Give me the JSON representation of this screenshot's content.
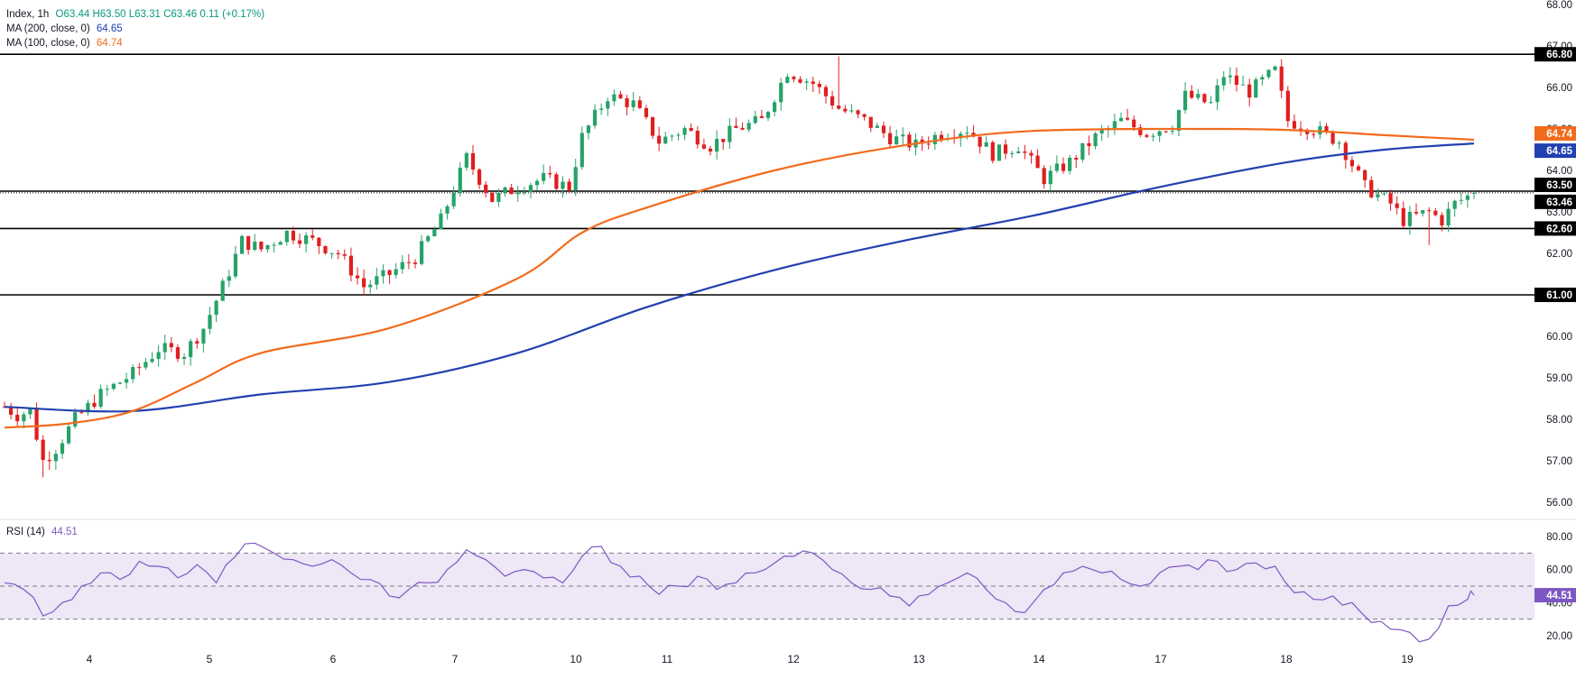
{
  "colors": {
    "up": "#26a269",
    "down": "#e01e1e",
    "ma200": "#2340b0",
    "ma100": "#f26b1d",
    "rsi": "#7e57c2",
    "rsi_band": "#ede7f6",
    "level": "#000000",
    "axis_text": "#131722",
    "grid_sep": "#e0e3eb"
  },
  "legend": {
    "symbol": "Index, 1h",
    "ohlc_text": "O63.44  H63.50  L63.31  C63.46  0.11 (+0.17%)",
    "ma200_label": "MA (200, close, 0)",
    "ma200_value": "64.65",
    "ma100_label": "MA (100, close, 0)",
    "ma100_value": "64.74",
    "rsi_label": "RSI (14)",
    "rsi_value": "44.51"
  },
  "chart_data": [
    {
      "type": "candlestick",
      "title": "Index, 1h",
      "x_labels": [
        "4",
        "5",
        "6",
        "7",
        "10",
        "11",
        "12",
        "13",
        "14",
        "17",
        "18",
        "19"
      ],
      "y_ticks": [
        "56.00",
        "57.00",
        "58.00",
        "59.00",
        "60.00",
        "61.00",
        "62.00",
        "63.00",
        "64.00",
        "65.00",
        "66.00",
        "67.00",
        "68.00"
      ],
      "ylim": [
        55.7,
        68.1
      ],
      "horizontal_levels": [
        {
          "value": 66.8,
          "label": "66.80",
          "style": "solid"
        },
        {
          "value": 63.5,
          "label": "63.50",
          "style": "solid"
        },
        {
          "value": 63.46,
          "label": "63.46",
          "style": "dotted",
          "note": "last price"
        },
        {
          "value": 62.6,
          "label": "62.60",
          "style": "solid"
        },
        {
          "value": 61.0,
          "label": "61.00",
          "style": "solid"
        }
      ],
      "close_path": [
        [
          0,
          58.3
        ],
        [
          2,
          58.1
        ],
        [
          4,
          58.2
        ],
        [
          5,
          57.6
        ],
        [
          6,
          57.0
        ],
        [
          8,
          57.3
        ],
        [
          11,
          58.0
        ],
        [
          15,
          58.6
        ],
        [
          20,
          59.1
        ],
        [
          24,
          59.7
        ],
        [
          28,
          59.6
        ],
        [
          31,
          60.2
        ],
        [
          34,
          61.2
        ],
        [
          37,
          62.3
        ],
        [
          40,
          62.1
        ],
        [
          44,
          62.5
        ],
        [
          48,
          62.3
        ],
        [
          52,
          62.0
        ],
        [
          56,
          61.2
        ],
        [
          60,
          61.5
        ],
        [
          64,
          61.9
        ],
        [
          68,
          62.8
        ],
        [
          72,
          64.3
        ],
        [
          74,
          63.8
        ],
        [
          76,
          63.3
        ],
        [
          80,
          63.6
        ],
        [
          84,
          63.8
        ],
        [
          88,
          63.6
        ],
        [
          90,
          64.8
        ],
        [
          94,
          65.8
        ],
        [
          98,
          65.6
        ],
        [
          102,
          64.7
        ],
        [
          106,
          65.0
        ],
        [
          110,
          64.6
        ],
        [
          114,
          65.0
        ],
        [
          118,
          65.2
        ],
        [
          122,
          66.4
        ],
        [
          126,
          66.1
        ],
        [
          130,
          65.5
        ],
        [
          134,
          65.2
        ],
        [
          138,
          64.8
        ],
        [
          142,
          64.6
        ],
        [
          146,
          64.9
        ],
        [
          150,
          65.0
        ],
        [
          154,
          64.4
        ],
        [
          158,
          64.6
        ],
        [
          162,
          63.8
        ],
        [
          166,
          64.2
        ],
        [
          170,
          64.8
        ],
        [
          174,
          65.2
        ],
        [
          178,
          64.9
        ],
        [
          182,
          65.1
        ],
        [
          184,
          65.8
        ],
        [
          188,
          65.6
        ],
        [
          190,
          66.3
        ],
        [
          194,
          65.9
        ],
        [
          198,
          66.4
        ],
        [
          200,
          65.2
        ],
        [
          204,
          65.0
        ],
        [
          208,
          64.7
        ],
        [
          212,
          63.6
        ],
        [
          216,
          63.2
        ],
        [
          218,
          62.8
        ],
        [
          222,
          63.0
        ],
        [
          224,
          62.8
        ],
        [
          226,
          63.2
        ],
        [
          229,
          63.46
        ]
      ],
      "series": [
        {
          "name": "MA (200, close, 0)",
          "points": [
            [
              0,
              58.3
            ],
            [
              20,
              58.2
            ],
            [
              40,
              58.6
            ],
            [
              60,
              58.9
            ],
            [
              80,
              59.6
            ],
            [
              100,
              60.7
            ],
            [
              120,
              61.6
            ],
            [
              140,
              62.3
            ],
            [
              160,
              62.9
            ],
            [
              180,
              63.6
            ],
            [
              200,
              64.2
            ],
            [
              215,
              64.5
            ],
            [
              229,
              64.65
            ]
          ]
        },
        {
          "name": "MA (100, close, 0)",
          "points": [
            [
              0,
              57.8
            ],
            [
              10,
              57.9
            ],
            [
              20,
              58.2
            ],
            [
              30,
              58.9
            ],
            [
              40,
              59.6
            ],
            [
              60,
              60.2
            ],
            [
              80,
              61.4
            ],
            [
              90,
              62.5
            ],
            [
              100,
              63.1
            ],
            [
              120,
              64.0
            ],
            [
              140,
              64.6
            ],
            [
              160,
              64.95
            ],
            [
              190,
              65.0
            ],
            [
              204,
              64.95
            ],
            [
              215,
              64.85
            ],
            [
              229,
              64.74
            ]
          ]
        }
      ]
    },
    {
      "type": "line",
      "title": "RSI (14)",
      "y_ticks": [
        "20.00",
        "40.00",
        "60.00",
        "80.00"
      ],
      "ylim": [
        12,
        86
      ],
      "band": [
        30,
        70
      ],
      "midline": 50,
      "current": 44.51,
      "series": [
        {
          "name": "RSI (14)",
          "points": [
            [
              0,
              52
            ],
            [
              3,
              48
            ],
            [
              6,
              32
            ],
            [
              9,
              40
            ],
            [
              12,
              50
            ],
            [
              15,
              58
            ],
            [
              18,
              54
            ],
            [
              21,
              65
            ],
            [
              24,
              62
            ],
            [
              27,
              55
            ],
            [
              30,
              63
            ],
            [
              33,
              52
            ],
            [
              36,
              68
            ],
            [
              39,
              76
            ],
            [
              42,
              70
            ],
            [
              45,
              66
            ],
            [
              48,
              62
            ],
            [
              51,
              66
            ],
            [
              54,
              58
            ],
            [
              57,
              54
            ],
            [
              60,
              44
            ],
            [
              63,
              48
            ],
            [
              66,
              52
            ],
            [
              69,
              60
            ],
            [
              72,
              72
            ],
            [
              75,
              66
            ],
            [
              78,
              56
            ],
            [
              81,
              60
            ],
            [
              84,
              55
            ],
            [
              87,
              52
            ],
            [
              90,
              68
            ],
            [
              93,
              74
            ],
            [
              96,
              62
            ],
            [
              99,
              56
            ],
            [
              102,
              45
            ],
            [
              105,
              50
            ],
            [
              108,
              56
            ],
            [
              111,
              48
            ],
            [
              114,
              52
            ],
            [
              117,
              58
            ],
            [
              120,
              64
            ],
            [
              123,
              68
            ],
            [
              126,
              70
            ],
            [
              129,
              60
            ],
            [
              132,
              52
            ],
            [
              135,
              48
            ],
            [
              138,
              44
            ],
            [
              141,
              38
            ],
            [
              144,
              45
            ],
            [
              147,
              52
            ],
            [
              150,
              58
            ],
            [
              153,
              48
            ],
            [
              156,
              40
            ],
            [
              159,
              34
            ],
            [
              162,
              48
            ],
            [
              165,
              58
            ],
            [
              168,
              62
            ],
            [
              171,
              58
            ],
            [
              174,
              54
            ],
            [
              177,
              50
            ],
            [
              180,
              58
            ],
            [
              183,
              62
            ],
            [
              186,
              60
            ],
            [
              189,
              65
            ],
            [
              192,
              60
            ],
            [
              195,
              64
            ],
            [
              198,
              62
            ],
            [
              201,
              46
            ],
            [
              204,
              42
            ],
            [
              207,
              44
            ],
            [
              210,
              40
            ],
            [
              213,
              28
            ],
            [
              216,
              24
            ],
            [
              219,
              22
            ],
            [
              222,
              18
            ],
            [
              225,
              38
            ],
            [
              228,
              42
            ],
            [
              229,
              44.51
            ]
          ]
        }
      ]
    }
  ],
  "rsi_extra": {
    "value": 44.51
  }
}
